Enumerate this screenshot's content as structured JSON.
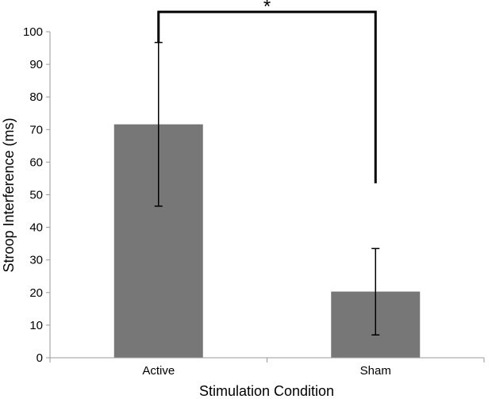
{
  "chart_data": {
    "type": "bar",
    "categories": [
      "Active",
      "Sham"
    ],
    "values": [
      71.6,
      20.3
    ],
    "error_upper": [
      96.7,
      33.5
    ],
    "error_lower": [
      46.5,
      7.0
    ],
    "xlabel": "Stimulation Condition",
    "ylabel": "Stroop Interference (ms)",
    "ylim": [
      0,
      100
    ],
    "yticks": [
      0,
      10,
      20,
      30,
      40,
      50,
      60,
      70,
      80,
      90,
      100
    ],
    "ytick_labels": [
      "0",
      "10",
      "20",
      "30",
      "40",
      "50",
      "60",
      "70",
      "80",
      "90",
      "100"
    ],
    "grid": false,
    "legend": "none",
    "bar_color": "#777777",
    "significance": {
      "between": [
        "Active",
        "Sham"
      ],
      "marker": "*",
      "sham_drop_value": 53.5
    }
  }
}
